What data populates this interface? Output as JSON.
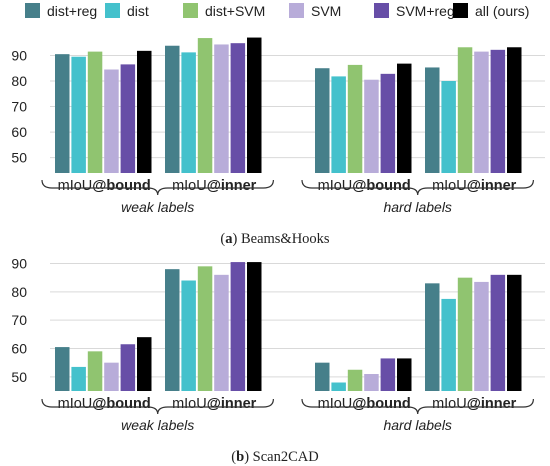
{
  "colors": [
    "#467f8a",
    "#44c1cc",
    "#90c470",
    "#b8acd9",
    "#674ea7",
    "#000000"
  ],
  "legend": [
    "dist+reg",
    "dist",
    "dist+SVM",
    "SVM",
    "SVM+reg",
    "all (ours)"
  ],
  "chart_data": [
    {
      "type": "bar",
      "caption_tag": "a",
      "caption_text": "Beams&Hooks",
      "ylim": [
        44,
        98
      ],
      "yticks": [
        50,
        60,
        70,
        80,
        90
      ],
      "groups": [
        {
          "label": "weak labels",
          "metrics": [
            {
              "prefix": "mIoU",
              "suffix": "@bound",
              "values": [
                90.5,
                89.5,
                91.5,
                84.5,
                86.5,
                91.8
              ]
            },
            {
              "prefix": "mIoU",
              "suffix": "@inner",
              "values": [
                93.8,
                91.2,
                96.8,
                94.3,
                94.8,
                97.0
              ]
            }
          ]
        },
        {
          "label": "hard labels",
          "metrics": [
            {
              "prefix": "mIoU",
              "suffix": "@bound",
              "values": [
                85.0,
                81.8,
                86.3,
                80.5,
                82.8,
                86.8
              ]
            },
            {
              "prefix": "mIoU",
              "suffix": "@inner",
              "values": [
                85.3,
                80.0,
                93.2,
                91.5,
                92.2,
                93.2
              ]
            }
          ]
        }
      ]
    },
    {
      "type": "bar",
      "caption_tag": "b",
      "caption_text": "Scan2CAD",
      "ylim": [
        45,
        93
      ],
      "yticks": [
        50,
        60,
        70,
        80,
        90
      ],
      "groups": [
        {
          "label": "weak labels",
          "metrics": [
            {
              "prefix": "mIoU",
              "suffix": "@bound",
              "values": [
                60.5,
                53.5,
                59.0,
                55.0,
                61.5,
                64.0
              ]
            },
            {
              "prefix": "mIoU",
              "suffix": "@inner",
              "values": [
                88.0,
                84.0,
                89.0,
                86.0,
                90.5,
                90.5
              ]
            }
          ]
        },
        {
          "label": "hard labels",
          "metrics": [
            {
              "prefix": "mIoU",
              "suffix": "@bound",
              "values": [
                55.0,
                48.0,
                52.5,
                51.0,
                56.5,
                56.5
              ]
            },
            {
              "prefix": "mIoU",
              "suffix": "@inner",
              "values": [
                83.0,
                77.5,
                85.0,
                83.5,
                86.0,
                86.0
              ]
            }
          ]
        }
      ]
    }
  ]
}
